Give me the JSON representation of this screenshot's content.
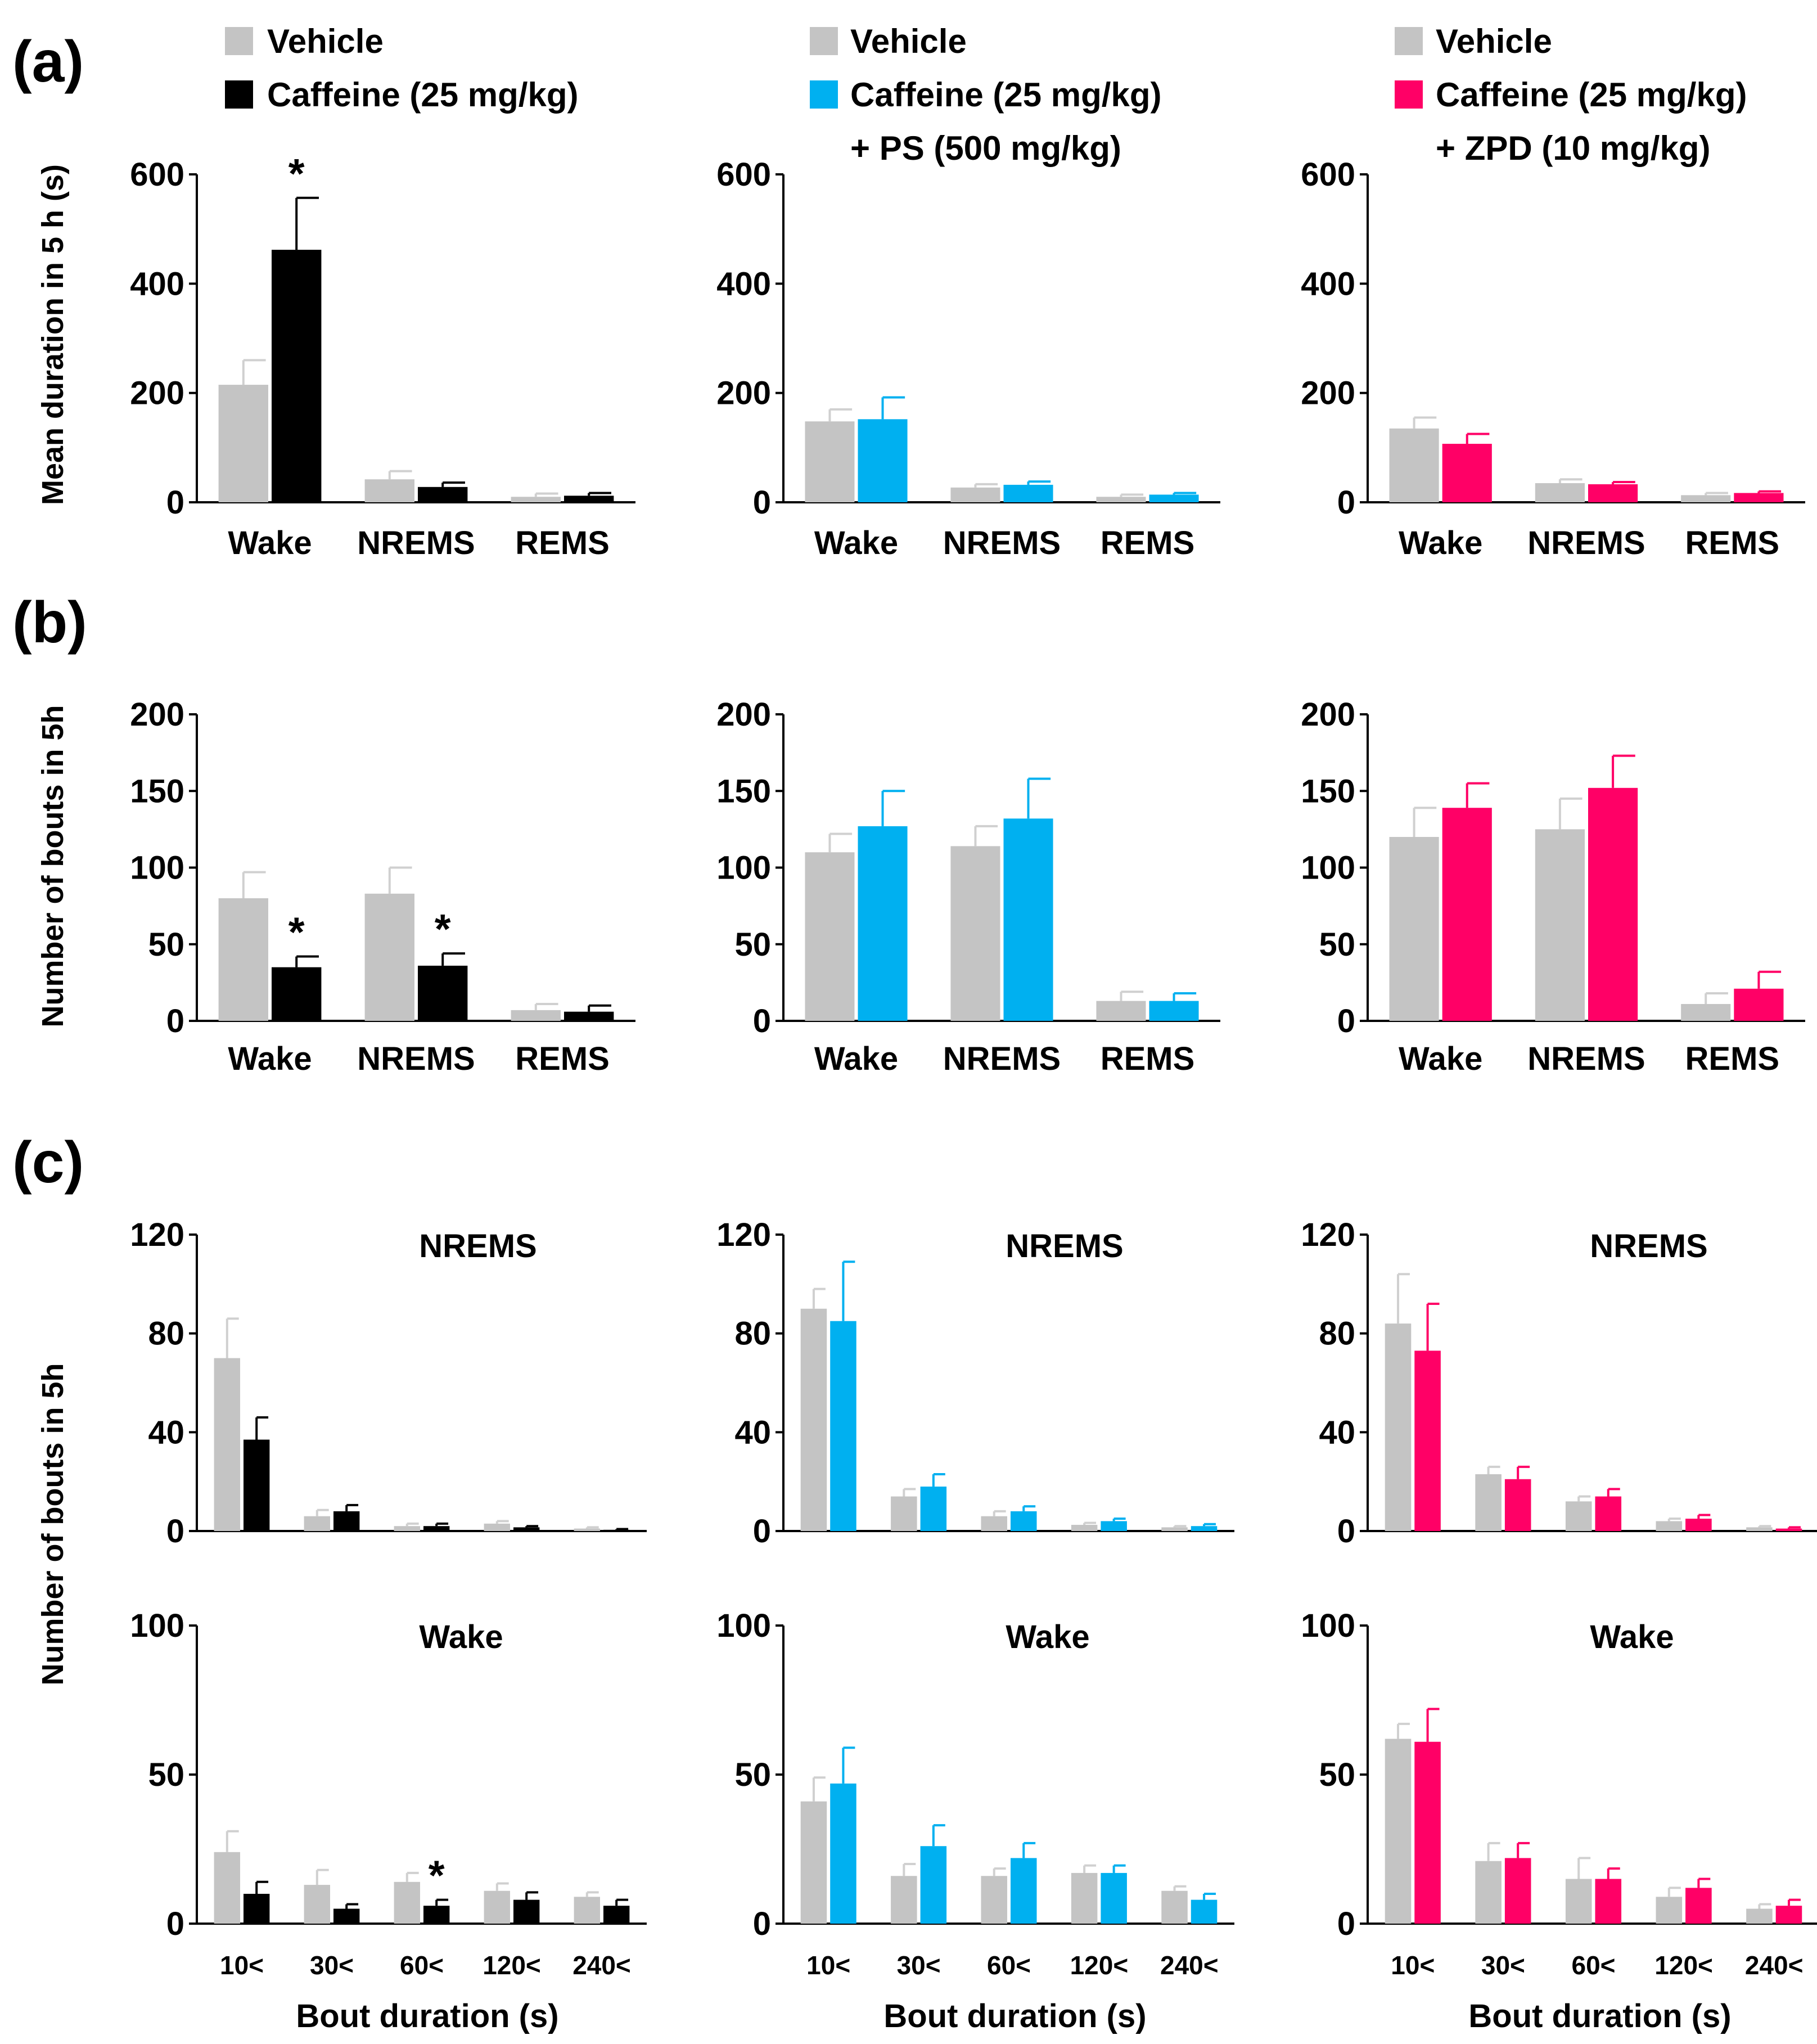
{
  "figure": {
    "panel_labels": [
      "(a)",
      "(b)",
      "(c)"
    ],
    "legend": {
      "vehicle": "Vehicle",
      "groups": [
        {
          "line1": "Caffeine (25 mg/kg)",
          "line2": ""
        },
        {
          "line1": "Caffeine (25 mg/kg)",
          "line2": "+ PS (500 mg/kg)"
        },
        {
          "line1": "Caffeine (25 mg/kg)",
          "line2": "+ ZPD (10 mg/kg)"
        }
      ]
    },
    "colors": {
      "vehicle": "#c4c4c4",
      "groups": [
        "#000000",
        "#00b0f0",
        "#ff0066"
      ]
    },
    "ylabels": {
      "a": "Mean duration in 5 h (s)",
      "b": "Number of bouts in 5h",
      "c": "Number of bouts in 5h"
    },
    "xlabel_c": "Bout duration (s)",
    "star": "*"
  },
  "chart_data": [
    {
      "id": "a1",
      "type": "bar",
      "title": "",
      "ylabel": "Mean duration in 5 h (s)",
      "ylim": [
        0,
        600
      ],
      "yticks": [
        0,
        200,
        400,
        600
      ],
      "categories": [
        "Wake",
        "NREMS",
        "REMS"
      ],
      "series": [
        {
          "name": "Vehicle",
          "values": [
            215,
            42,
            10
          ],
          "err": [
            45,
            15,
            6
          ]
        },
        {
          "name": "Caffeine (25 mg/kg)",
          "values": [
            462,
            28,
            12
          ],
          "err": [
            95,
            8,
            5
          ]
        }
      ],
      "significance": [
        {
          "category": 0,
          "series": 1,
          "label": "*"
        }
      ]
    },
    {
      "id": "a2",
      "type": "bar",
      "title": "",
      "ylabel": "",
      "ylim": [
        0,
        600
      ],
      "yticks": [
        0,
        200,
        400,
        600
      ],
      "categories": [
        "Wake",
        "NREMS",
        "REMS"
      ],
      "series": [
        {
          "name": "Vehicle",
          "values": [
            148,
            27,
            10
          ],
          "err": [
            22,
            6,
            4
          ]
        },
        {
          "name": "Caffeine (25 mg/kg) + PS (500 mg/kg)",
          "values": [
            152,
            32,
            14
          ],
          "err": [
            40,
            6,
            3
          ]
        }
      ],
      "significance": []
    },
    {
      "id": "a3",
      "type": "bar",
      "title": "",
      "ylabel": "",
      "ylim": [
        0,
        600
      ],
      "yticks": [
        0,
        200,
        400,
        600
      ],
      "categories": [
        "Wake",
        "NREMS",
        "REMS"
      ],
      "series": [
        {
          "name": "Vehicle",
          "values": [
            135,
            35,
            13
          ],
          "err": [
            20,
            7,
            4
          ]
        },
        {
          "name": "Caffeine (25 mg/kg) + ZPD (10 mg/kg)",
          "values": [
            107,
            33,
            17
          ],
          "err": [
            18,
            4,
            3
          ]
        }
      ],
      "significance": []
    },
    {
      "id": "b1",
      "type": "bar",
      "title": "",
      "ylabel": "Number of bouts in 5h",
      "ylim": [
        0,
        200
      ],
      "yticks": [
        0,
        50,
        100,
        150,
        200
      ],
      "categories": [
        "Wake",
        "NREMS",
        "REMS"
      ],
      "series": [
        {
          "name": "Vehicle",
          "values": [
            80,
            83,
            7
          ],
          "err": [
            17,
            17,
            4
          ]
        },
        {
          "name": "Caffeine (25 mg/kg)",
          "values": [
            35,
            36,
            6
          ],
          "err": [
            7,
            8,
            4
          ]
        }
      ],
      "significance": [
        {
          "category": 0,
          "series": 1,
          "label": "*"
        },
        {
          "category": 1,
          "series": 1,
          "label": "*"
        }
      ]
    },
    {
      "id": "b2",
      "type": "bar",
      "title": "",
      "ylabel": "",
      "ylim": [
        0,
        200
      ],
      "yticks": [
        0,
        50,
        100,
        150,
        200
      ],
      "categories": [
        "Wake",
        "NREMS",
        "REMS"
      ],
      "series": [
        {
          "name": "Vehicle",
          "values": [
            110,
            114,
            13
          ],
          "err": [
            12,
            13,
            6
          ]
        },
        {
          "name": "Caffeine (25 mg/kg) + PS (500 mg/kg)",
          "values": [
            127,
            132,
            13
          ],
          "err": [
            23,
            26,
            5
          ]
        }
      ],
      "significance": []
    },
    {
      "id": "b3",
      "type": "bar",
      "title": "",
      "ylabel": "",
      "ylim": [
        0,
        200
      ],
      "yticks": [
        0,
        50,
        100,
        150,
        200
      ],
      "categories": [
        "Wake",
        "NREMS",
        "REMS"
      ],
      "series": [
        {
          "name": "Vehicle",
          "values": [
            120,
            125,
            11
          ],
          "err": [
            19,
            20,
            7
          ]
        },
        {
          "name": "Caffeine (25 mg/kg) + ZPD (10 mg/kg)",
          "values": [
            139,
            152,
            21
          ],
          "err": [
            16,
            21,
            11
          ]
        }
      ],
      "significance": []
    },
    {
      "id": "c1",
      "type": "bar",
      "title": "NREMS",
      "ylabel": "Number of bouts in 5h",
      "ylim": [
        0,
        120
      ],
      "yticks": [
        0,
        40,
        80,
        120
      ],
      "categories": [
        "10<",
        "30<",
        "60<",
        "120<",
        "240<"
      ],
      "series": [
        {
          "name": "Vehicle",
          "values": [
            70,
            6,
            2,
            3,
            1
          ],
          "err": [
            16,
            2.5,
            1,
            1,
            0.5
          ]
        },
        {
          "name": "Caffeine (25 mg/kg)",
          "values": [
            37,
            8,
            2,
            1.5,
            0.5
          ],
          "err": [
            9,
            2.5,
            1,
            0.5,
            0.3
          ]
        }
      ],
      "significance": []
    },
    {
      "id": "c2",
      "type": "bar",
      "title": "NREMS",
      "ylabel": "",
      "ylim": [
        0,
        120
      ],
      "yticks": [
        0,
        40,
        80,
        120
      ],
      "categories": [
        "10<",
        "30<",
        "60<",
        "120<",
        "240<"
      ],
      "series": [
        {
          "name": "Vehicle",
          "values": [
            90,
            14,
            6,
            2.5,
            1.5
          ],
          "err": [
            8,
            3,
            2,
            0.8,
            0.5
          ]
        },
        {
          "name": "Caffeine (25 mg/kg) + PS (500 mg/kg)",
          "values": [
            85,
            18,
            8,
            4,
            2
          ],
          "err": [
            24,
            5,
            2,
            1,
            0.8
          ]
        }
      ],
      "significance": []
    },
    {
      "id": "c3",
      "type": "bar",
      "title": "NREMS",
      "ylabel": "",
      "ylim": [
        0,
        120
      ],
      "yticks": [
        0,
        40,
        80,
        120
      ],
      "categories": [
        "10<",
        "30<",
        "60<",
        "120<",
        "240<"
      ],
      "series": [
        {
          "name": "Vehicle",
          "values": [
            84,
            23,
            12,
            4,
            1.5
          ],
          "err": [
            20,
            3,
            2,
            1,
            0.5
          ]
        },
        {
          "name": "Caffeine (25 mg/kg) + ZPD (10 mg/kg)",
          "values": [
            73,
            21,
            14,
            5,
            1
          ],
          "err": [
            19,
            5,
            3,
            1.5,
            0.5
          ]
        }
      ],
      "significance": []
    },
    {
      "id": "c4",
      "type": "bar",
      "title": "Wake",
      "ylabel": "Number of bouts in 5h",
      "ylim": [
        0,
        100
      ],
      "yticks": [
        0,
        50,
        100
      ],
      "categories": [
        "10<",
        "30<",
        "60<",
        "120<",
        "240<"
      ],
      "series": [
        {
          "name": "Vehicle",
          "values": [
            24,
            13,
            14,
            11,
            9
          ],
          "err": [
            7,
            5,
            3,
            2.5,
            1.5
          ]
        },
        {
          "name": "Caffeine (25 mg/kg)",
          "values": [
            10,
            5,
            6,
            8,
            6
          ],
          "err": [
            4,
            1.5,
            2,
            2.5,
            2
          ]
        }
      ],
      "significance": [
        {
          "category": 2,
          "series": 1,
          "label": "*"
        }
      ]
    },
    {
      "id": "c5",
      "type": "bar",
      "title": "Wake",
      "ylabel": "",
      "ylim": [
        0,
        100
      ],
      "yticks": [
        0,
        50,
        100
      ],
      "categories": [
        "10<",
        "30<",
        "60<",
        "120<",
        "240<"
      ],
      "series": [
        {
          "name": "Vehicle",
          "values": [
            41,
            16,
            16,
            17,
            11
          ],
          "err": [
            8,
            4,
            2.5,
            2.5,
            1.5
          ]
        },
        {
          "name": "Caffeine (25 mg/kg) + PS (500 mg/kg)",
          "values": [
            47,
            26,
            22,
            17,
            8
          ],
          "err": [
            12,
            7,
            5,
            2.5,
            2
          ]
        }
      ],
      "significance": []
    },
    {
      "id": "c6",
      "type": "bar",
      "title": "Wake",
      "ylabel": "",
      "ylim": [
        0,
        100
      ],
      "yticks": [
        0,
        50,
        100
      ],
      "categories": [
        "10<",
        "30<",
        "60<",
        "120<",
        "240<"
      ],
      "series": [
        {
          "name": "Vehicle",
          "values": [
            62,
            21,
            15,
            9,
            5
          ],
          "err": [
            5,
            6,
            7,
            3,
            1.5
          ]
        },
        {
          "name": "Caffeine (25 mg/kg) + ZPD (10 mg/kg)",
          "values": [
            61,
            22,
            15,
            12,
            6
          ],
          "err": [
            11,
            5,
            3.5,
            3,
            2
          ]
        }
      ],
      "significance": []
    }
  ]
}
